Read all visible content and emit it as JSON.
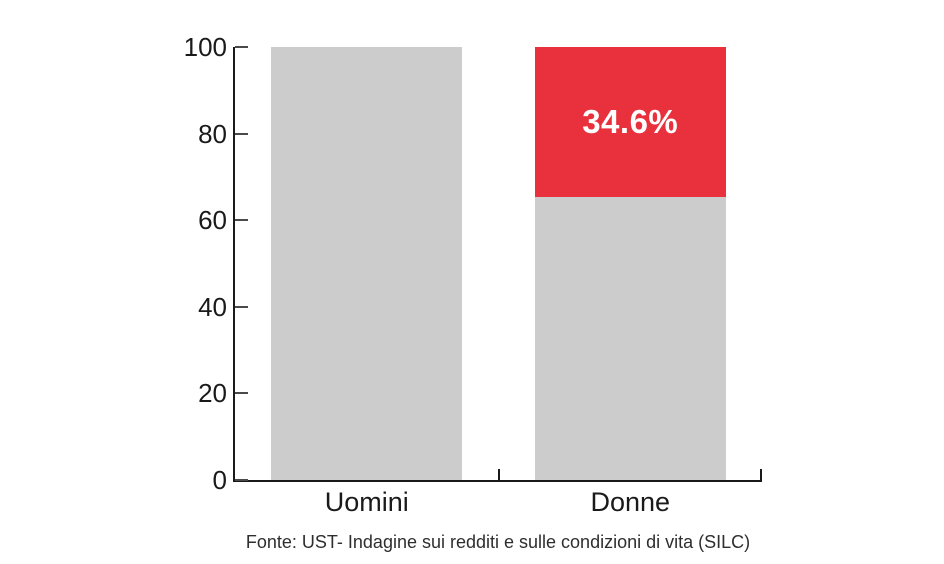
{
  "chart_data": {
    "type": "bar",
    "stacked": true,
    "categories": [
      "Uomini",
      "Donne"
    ],
    "series": [
      {
        "name": "base",
        "color": "#CCCCCC",
        "values": [
          100,
          65.4
        ]
      },
      {
        "name": "highlight",
        "color": "#E8313C",
        "values": [
          0,
          34.6
        ]
      }
    ],
    "value_labels": [
      {
        "category": "Donne",
        "series": "highlight",
        "text": "34.6%"
      }
    ],
    "ylim": [
      0,
      100
    ],
    "yticks": [
      0,
      20,
      40,
      60,
      80,
      100
    ],
    "grid": false,
    "legend": "none",
    "caption": "Fonte: UST- Indagine sui redditi e sulle condizioni di vita (SILC)",
    "colors": {
      "bar_gray": "#CCCCCC",
      "bar_red": "#E8313C",
      "axis": "#1A1A1A",
      "tick": "#4A4A4A",
      "label_text": "#1A1A1A",
      "value_label_text": "#FFFFFF",
      "caption_text": "#2E2E2E",
      "background": "#FFFFFF"
    }
  }
}
